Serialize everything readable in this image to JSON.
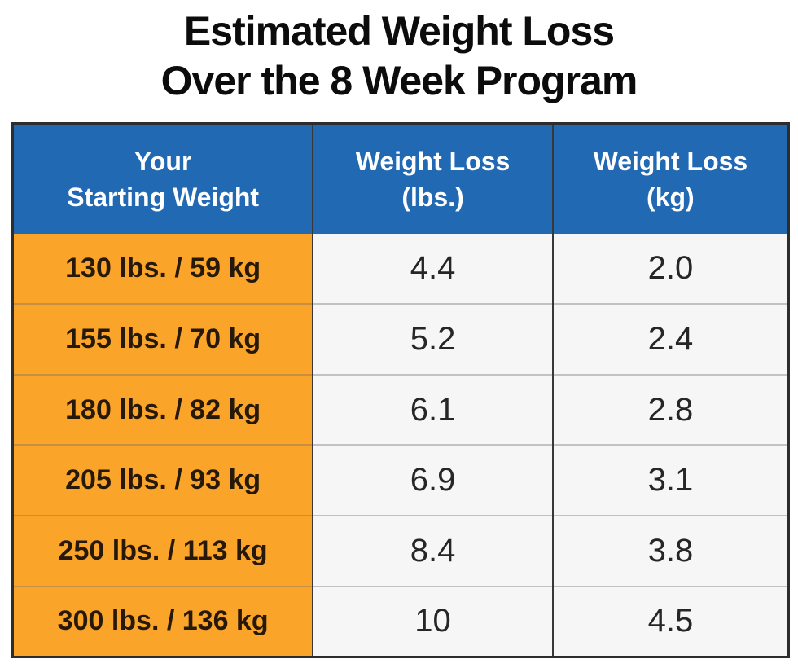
{
  "title": {
    "line1": "Estimated Weight Loss",
    "line2": "Over the 8 Week Program"
  },
  "table": {
    "headers": [
      {
        "line1": "Your",
        "line2": "Starting Weight"
      },
      {
        "line1": "Weight Loss",
        "line2": "(lbs.)"
      },
      {
        "line1": "Weight Loss",
        "line2": "(kg)"
      }
    ],
    "rows": [
      {
        "starting_weight": "130 lbs. / 59 kg",
        "loss_lbs": "4.4",
        "loss_kg": "2.0"
      },
      {
        "starting_weight": "155 lbs. / 70 kg",
        "loss_lbs": "5.2",
        "loss_kg": "2.4"
      },
      {
        "starting_weight": "180 lbs. / 82 kg",
        "loss_lbs": "6.1",
        "loss_kg": "2.8"
      },
      {
        "starting_weight": "205 lbs. / 93 kg",
        "loss_lbs": "6.9",
        "loss_kg": "3.1"
      },
      {
        "starting_weight": "250 lbs. / 113 kg",
        "loss_lbs": "8.4",
        "loss_kg": "3.8"
      },
      {
        "starting_weight": "300 lbs. / 136 kg",
        "loss_lbs": "10",
        "loss_kg": "4.5"
      }
    ]
  },
  "colors": {
    "header_bg": "#2269b3",
    "header_text": "#ffffff",
    "label_col_bg": "#faa529",
    "label_col_text": "#27190a",
    "value_cell_bg": "#f6f6f7",
    "value_text": "#262626",
    "outer_border": "#2d2d2d",
    "column_border": "#383838",
    "title_color": "#0c0c0c"
  },
  "chart_data": {
    "type": "table",
    "title": "Estimated Weight Loss Over the 8 Week Program",
    "columns": [
      "Your Starting Weight",
      "Weight Loss (lbs.)",
      "Weight Loss (kg)"
    ],
    "rows": [
      [
        "130 lbs. / 59 kg",
        4.4,
        2.0
      ],
      [
        "155 lbs. / 70 kg",
        5.2,
        2.4
      ],
      [
        "180 lbs. / 82 kg",
        6.1,
        2.8
      ],
      [
        "205 lbs. / 93 kg",
        6.9,
        3.1
      ],
      [
        "250 lbs. / 113 kg",
        8.4,
        3.8
      ],
      [
        "300 lbs. / 136 kg",
        10,
        4.5
      ]
    ]
  }
}
